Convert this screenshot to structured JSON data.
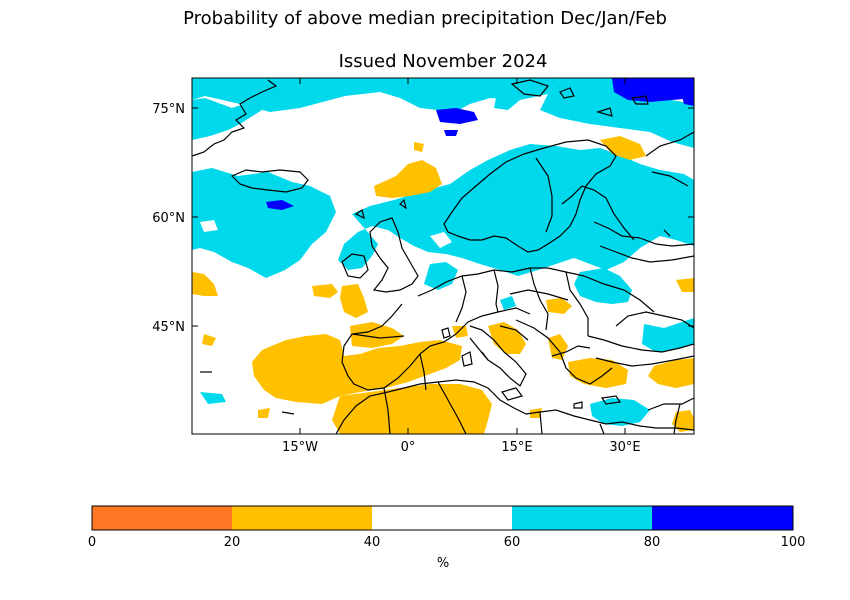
{
  "figure": {
    "title": "Probability of above median precipitation Dec/Jan/Feb",
    "subtitle": "Issued November 2024"
  },
  "map": {
    "lat_ticks": [
      "75°N",
      "60°N",
      "45°N"
    ],
    "lon_ticks": [
      "15°W",
      "0°",
      "15°E",
      "30°E"
    ],
    "category_colors": {
      "0-20": "#ff7722",
      "20-40": "#ffc000",
      "40-60": "#ffffff",
      "60-80": "#00d8ec",
      "80-100": "#0000ff"
    },
    "land_outline_color": "#000000"
  },
  "colorbar": {
    "ticks": [
      "0",
      "20",
      "40",
      "60",
      "80",
      "100"
    ],
    "label": "%",
    "colors": [
      "#ff7722",
      "#ffc000",
      "#ffffff",
      "#00d8ec",
      "#0000ff"
    ]
  }
}
